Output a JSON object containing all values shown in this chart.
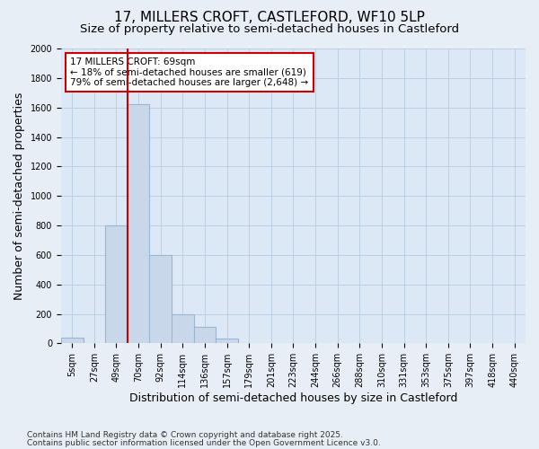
{
  "title1": "17, MILLERS CROFT, CASTLEFORD, WF10 5LP",
  "title2": "Size of property relative to semi-detached houses in Castleford",
  "xlabel": "Distribution of semi-detached houses by size in Castleford",
  "ylabel": "Number of semi-detached properties",
  "annotation_title": "17 MILLERS CROFT: 69sqm",
  "annotation_line1": "← 18% of semi-detached houses are smaller (619)",
  "annotation_line2": "79% of semi-detached houses are larger (2,648) →",
  "footnote1": "Contains HM Land Registry data © Crown copyright and database right 2025.",
  "footnote2": "Contains public sector information licensed under the Open Government Licence v3.0.",
  "categories": [
    "5sqm",
    "27sqm",
    "49sqm",
    "70sqm",
    "92sqm",
    "114sqm",
    "136sqm",
    "157sqm",
    "179sqm",
    "201sqm",
    "223sqm",
    "244sqm",
    "266sqm",
    "288sqm",
    "310sqm",
    "331sqm",
    "353sqm",
    "375sqm",
    "397sqm",
    "418sqm",
    "440sqm"
  ],
  "values": [
    40,
    0,
    800,
    1620,
    600,
    200,
    110,
    30,
    0,
    0,
    0,
    0,
    0,
    0,
    0,
    0,
    0,
    0,
    0,
    0,
    0
  ],
  "bar_color": "#c8d8ea",
  "bar_edge_color": "#9ab5d0",
  "highlight_index": 3,
  "highlight_line_color": "#cc0000",
  "ylim": [
    0,
    2000
  ],
  "yticks": [
    0,
    200,
    400,
    600,
    800,
    1000,
    1200,
    1400,
    1600,
    1800,
    2000
  ],
  "bg_color": "#e8eef5",
  "plot_bg_color": "#dce8f5",
  "grid_color": "#b8cce0",
  "title_fontsize": 11,
  "subtitle_fontsize": 9.5,
  "tick_fontsize": 7,
  "label_fontsize": 9
}
